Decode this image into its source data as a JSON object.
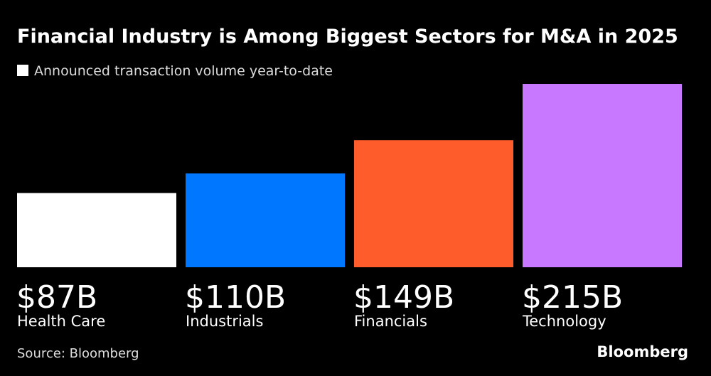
{
  "chart_data": {
    "type": "bar",
    "title": "Financial Industry is Among Biggest Sectors for M&A in 2025",
    "legend": {
      "name": "Announced transaction volume year-to-date",
      "color": "#ffffff"
    },
    "categories": [
      "Health Care",
      "Industrials",
      "Financials",
      "Technology"
    ],
    "values": [
      87,
      110,
      149,
      215
    ],
    "value_labels": [
      "$87B",
      "$110B",
      "$149B",
      "$215B"
    ],
    "colors": [
      "#ffffff",
      "#0077ff",
      "#ff5c2b",
      "#c877ff"
    ],
    "source": "Source: Bloomberg",
    "brand": "Bloomberg"
  }
}
